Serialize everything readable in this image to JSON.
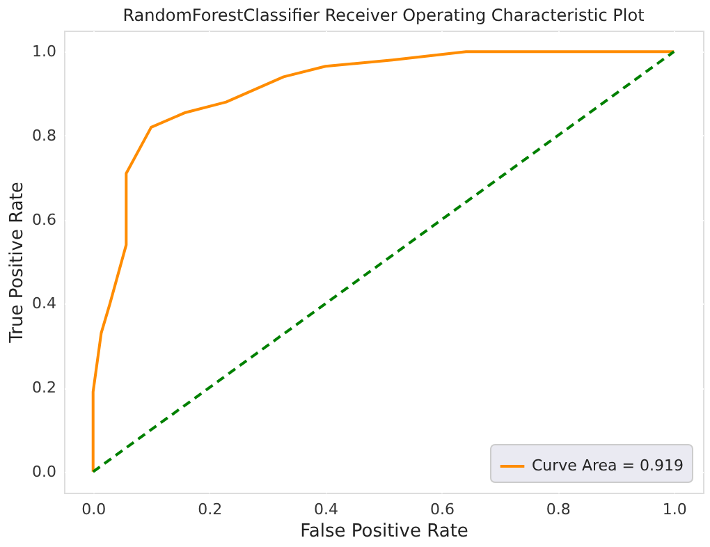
{
  "chart_data": {
    "type": "line",
    "title": "RandomForestClassifier Receiver Operating Characteristic Plot",
    "xlabel": "False Positive Rate",
    "ylabel": "True Positive Rate",
    "series": [
      {
        "name": "Curve Area = 0.919",
        "color": "#ff8c00",
        "line_style": "solid",
        "x": [
          0,
          0,
          0.014,
          0.029,
          0.057,
          0.057,
          0.1,
          0.159,
          0.229,
          0.328,
          0.4,
          0.515,
          0.642,
          1.0
        ],
        "values": [
          0,
          0.19,
          0.33,
          0.4,
          0.54,
          0.71,
          0.82,
          0.855,
          0.88,
          0.94,
          0.965,
          0.98,
          1.0,
          1.0
        ]
      },
      {
        "color": "#008000",
        "line_style": "dashed",
        "x": [
          0,
          1
        ],
        "values": [
          0,
          1
        ]
      }
    ],
    "xlim": [
      -0.05,
      1.05
    ],
    "ylim": [
      -0.05,
      1.05
    ],
    "xticks": [
      {
        "value": 0,
        "label": "0.0"
      },
      0.2,
      0.4,
      0.6,
      0.8,
      {
        "value": 1,
        "label": "1.0"
      }
    ],
    "yticks": [
      {
        "value": 0,
        "label": "0.0"
      },
      0.2,
      0.4,
      0.6,
      0.8,
      {
        "value": 1,
        "label": "1.0"
      }
    ],
    "grid": true,
    "legend": "bottom right",
    "marker": "none"
  }
}
